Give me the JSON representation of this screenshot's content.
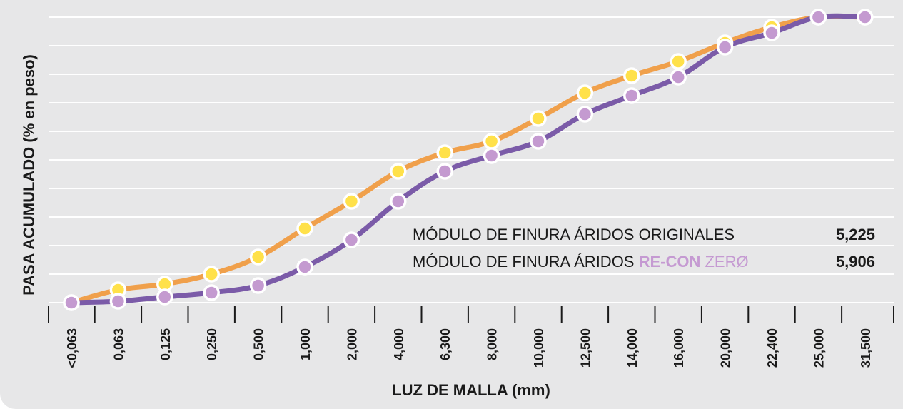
{
  "chart_data": {
    "type": "line",
    "xlabel": "LUZ DE MALLA (mm)",
    "ylabel": "PASA ACUMULADO (% en peso)",
    "categories": [
      "<0,063",
      "0,063",
      "0,125",
      "0,250",
      "0,500",
      "1,000",
      "2,000",
      "4,000",
      "6,300",
      "8,000",
      "10,000",
      "12,500",
      "14,000",
      "16,000",
      "20,000",
      "22,400",
      "25,000",
      "31,500"
    ],
    "ylim": [
      0,
      100
    ],
    "grid": true,
    "series": [
      {
        "values": [
          0,
          4.5,
          6.5,
          10,
          16,
          26,
          35.5,
          46,
          52.5,
          56.5,
          64.5,
          73.5,
          79.5,
          84.5,
          91,
          96.5,
          100,
          100
        ],
        "line_color": "#f0a04b",
        "marker_color": "#ffe14a"
      },
      {
        "values": [
          0,
          0.5,
          2,
          3.5,
          6,
          12.5,
          22,
          35.5,
          46,
          51.5,
          56.5,
          66,
          72.5,
          79,
          89.5,
          94.5,
          100,
          100
        ],
        "line_color": "#7b5ba8",
        "marker_color": "#c49ad0"
      }
    ],
    "annotations": [
      {
        "label_parts": [
          "MÓDULO DE FINURA ÁRIDOS ORIGINALES"
        ],
        "value": "5,225"
      },
      {
        "label_parts": [
          "MÓDULO DE FINURA ÁRIDOS ",
          "RE-CON",
          " ZERØ"
        ],
        "value": "5,906"
      }
    ],
    "colors": {
      "background": "#e7e7e8",
      "grid": "#ffffff",
      "axis": "#1a1a1a",
      "brand": "#c59ad2"
    }
  }
}
